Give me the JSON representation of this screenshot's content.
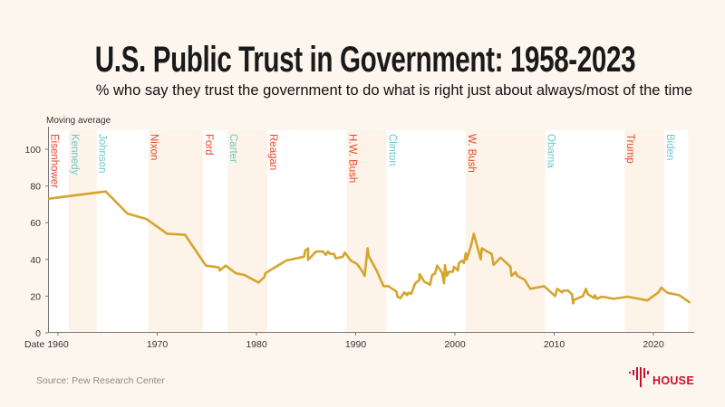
{
  "title": "U.S. Public Trust in Government: 1958-2023",
  "subtitle": "% who say they trust the government to do what is right just about always/most of the time",
  "source": "Source: Pew Research Center",
  "logo": {
    "text": "HOUSE",
    "color": "#c8102e"
  },
  "colors": {
    "line": "#d4a52e",
    "republican": "#e8472b",
    "democrat": "#6cc8c8",
    "shade": "#fdf3e8",
    "white": "#ffffff"
  },
  "chart_data": {
    "type": "line",
    "ylabel": "Moving average",
    "xlabel": "Date",
    "xlim": [
      1959,
      2024
    ],
    "ylim": [
      0,
      112
    ],
    "xticks": [
      1960,
      1970,
      1980,
      1990,
      2000,
      2010,
      2020
    ],
    "yticks": [
      0,
      20,
      40,
      60,
      80,
      100
    ],
    "grid": false,
    "presidents": [
      {
        "name": "Eisenhower",
        "party": "R",
        "start": 1959,
        "end": 1961.1
      },
      {
        "name": "Kennedy",
        "party": "D",
        "start": 1961.1,
        "end": 1963.9
      },
      {
        "name": "Johnson",
        "party": "D",
        "start": 1963.9,
        "end": 1969.1
      },
      {
        "name": "Nixon",
        "party": "R",
        "start": 1969.1,
        "end": 1974.6
      },
      {
        "name": "Ford",
        "party": "R",
        "start": 1974.6,
        "end": 1977.1
      },
      {
        "name": "Carter",
        "party": "D",
        "start": 1977.1,
        "end": 1981.1
      },
      {
        "name": "Reagan",
        "party": "R",
        "start": 1981.1,
        "end": 1989.1
      },
      {
        "name": "H.W. Bush",
        "party": "R",
        "start": 1989.1,
        "end": 1993.1
      },
      {
        "name": "Clinton",
        "party": "D",
        "start": 1993.1,
        "end": 2001.1
      },
      {
        "name": "W. Bush",
        "party": "R",
        "start": 2001.1,
        "end": 2009.1
      },
      {
        "name": "Obama",
        "party": "D",
        "start": 2009.1,
        "end": 2017.1
      },
      {
        "name": "Trump",
        "party": "R",
        "start": 2017.1,
        "end": 2021.1
      },
      {
        "name": "Biden",
        "party": "D",
        "start": 2021.1,
        "end": 2023.5
      }
    ],
    "series": [
      {
        "points": [
          [
            1958.9,
            73
          ],
          [
            1964.8,
            77
          ],
          [
            1967,
            65
          ],
          [
            1968.9,
            62
          ],
          [
            1971,
            54
          ],
          [
            1972.8,
            53.4
          ],
          [
            1974.9,
            36.6
          ],
          [
            1976.2,
            35.6
          ],
          [
            1976.3,
            34
          ],
          [
            1976.9,
            36.6
          ],
          [
            1977.9,
            32.5
          ],
          [
            1978.8,
            31.5
          ],
          [
            1980.2,
            27.4
          ],
          [
            1980.8,
            30.4
          ],
          [
            1980.9,
            32.5
          ],
          [
            1983,
            39.4
          ],
          [
            1984.8,
            41.5
          ],
          [
            1984.9,
            44.8
          ],
          [
            1985.2,
            46
          ],
          [
            1985.2,
            39.7
          ],
          [
            1986,
            44.3
          ],
          [
            1986.7,
            44.3
          ],
          [
            1987,
            42.4
          ],
          [
            1987.2,
            44.3
          ],
          [
            1987.4,
            43
          ],
          [
            1987.8,
            43
          ],
          [
            1988,
            40.6
          ],
          [
            1988.7,
            41.5
          ],
          [
            1988.9,
            43.8
          ],
          [
            1989.5,
            39.4
          ],
          [
            1990.1,
            37.7
          ],
          [
            1990.6,
            34
          ],
          [
            1990.9,
            31
          ],
          [
            1991.2,
            46
          ],
          [
            1991.3,
            42
          ],
          [
            1992.1,
            34
          ],
          [
            1992.8,
            25.4
          ],
          [
            1993.3,
            25.4
          ],
          [
            1994.1,
            22.5
          ],
          [
            1994.2,
            19.7
          ],
          [
            1994.5,
            18.9
          ],
          [
            1994.9,
            22
          ],
          [
            1995.2,
            20.5
          ],
          [
            1995.3,
            21.8
          ],
          [
            1995.6,
            21.3
          ],
          [
            1996,
            27
          ],
          [
            1996.4,
            28.7
          ],
          [
            1996.45,
            32
          ],
          [
            1996.9,
            27.9
          ],
          [
            1997.5,
            26.2
          ],
          [
            1997.7,
            31.5
          ],
          [
            1998,
            32.3
          ],
          [
            1998.2,
            36.6
          ],
          [
            1998.7,
            32.8
          ],
          [
            1998.9,
            27
          ],
          [
            1999.0,
            36.9
          ],
          [
            1999.2,
            31.1
          ],
          [
            1999.4,
            33.3
          ],
          [
            1999.8,
            33.3
          ],
          [
            1999.9,
            36
          ],
          [
            2000.3,
            34
          ],
          [
            2000.4,
            38
          ],
          [
            2000.7,
            39.3
          ],
          [
            2000.9,
            38
          ],
          [
            2001.1,
            43.4
          ],
          [
            2001.2,
            40
          ],
          [
            2001.6,
            47
          ],
          [
            2001.9,
            54
          ],
          [
            2002.3,
            46
          ],
          [
            2002.6,
            40
          ],
          [
            2002.7,
            46
          ],
          [
            2003.7,
            43
          ],
          [
            2003.9,
            37
          ],
          [
            2004.6,
            41
          ],
          [
            2005.6,
            36
          ],
          [
            2005.7,
            31
          ],
          [
            2006.1,
            33
          ],
          [
            2006.3,
            31
          ],
          [
            2007,
            29
          ],
          [
            2007.6,
            24
          ],
          [
            2009,
            25.4
          ],
          [
            2010.1,
            20
          ],
          [
            2010.3,
            24
          ],
          [
            2010.8,
            22
          ],
          [
            2010.9,
            23
          ],
          [
            2011.4,
            23
          ],
          [
            2011.8,
            21
          ],
          [
            2011.9,
            16
          ],
          [
            2012,
            18
          ],
          [
            2012.9,
            20
          ],
          [
            2013.2,
            24
          ],
          [
            2013.4,
            21
          ],
          [
            2014,
            19
          ],
          [
            2014.1,
            20.5
          ],
          [
            2014.3,
            18.5
          ],
          [
            2014.8,
            19.7
          ],
          [
            2016,
            18.5
          ],
          [
            2017.4,
            19.7
          ],
          [
            2019.4,
            17.7
          ],
          [
            2020.5,
            22
          ],
          [
            2020.8,
            24.6
          ],
          [
            2021.4,
            21.8
          ],
          [
            2022.6,
            20.5
          ],
          [
            2023.7,
            16.4
          ]
        ]
      }
    ]
  }
}
